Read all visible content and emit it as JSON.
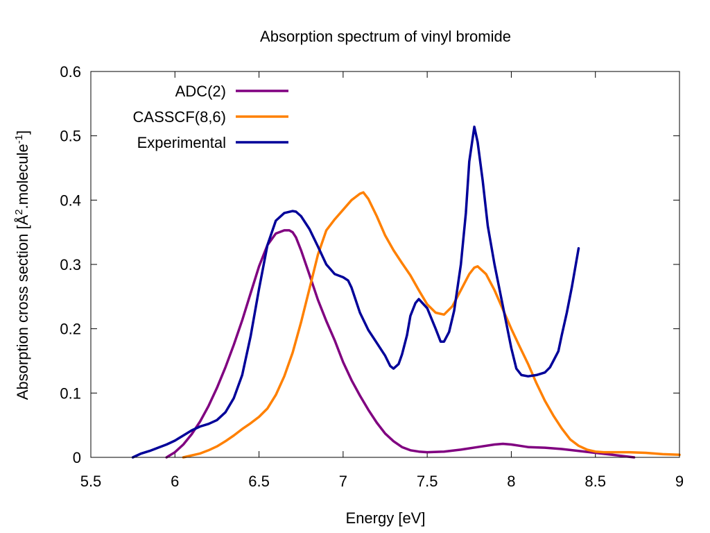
{
  "colors": {
    "adc2": "#800080",
    "casscf": "#ff8000",
    "experimental": "#000099"
  },
  "chart_data": {
    "type": "line",
    "title": "Absorption spectrum of vinyl bromide",
    "xlabel": "Energy [eV]",
    "ylabel_prefix": "Absorption cross section [Å",
    "ylabel_sup1": "2",
    "ylabel_middle": ".molecule",
    "ylabel_sup2": "-1",
    "ylabel_suffix": "]",
    "xlim": [
      5.5,
      9
    ],
    "ylim": [
      0,
      0.6
    ],
    "xticks": [
      5.5,
      6,
      6.5,
      7,
      7.5,
      8,
      8.5,
      9
    ],
    "xtick_labels": [
      "5.5",
      "6",
      "6.5",
      "7",
      "7.5",
      "8",
      "8.5",
      "9"
    ],
    "yticks": [
      0,
      0.1,
      0.2,
      0.3,
      0.4,
      0.5,
      0.6
    ],
    "ytick_labels": [
      "0",
      "0.1",
      "0.2",
      "0.3",
      "0.4",
      "0.5",
      "0.6"
    ],
    "legend_position": "top-left",
    "series": [
      {
        "name": "ADC(2)",
        "color_key": "adc2",
        "x": [
          5.95,
          6.0,
          6.05,
          6.1,
          6.15,
          6.2,
          6.25,
          6.3,
          6.35,
          6.4,
          6.45,
          6.5,
          6.55,
          6.6,
          6.65,
          6.68,
          6.7,
          6.72,
          6.75,
          6.8,
          6.85,
          6.9,
          6.95,
          7.0,
          7.05,
          7.1,
          7.15,
          7.2,
          7.25,
          7.3,
          7.35,
          7.4,
          7.45,
          7.5,
          7.6,
          7.7,
          7.8,
          7.9,
          7.95,
          8.0,
          8.05,
          8.1,
          8.2,
          8.3,
          8.4,
          8.5,
          8.6,
          8.7,
          8.73
        ],
        "y": [
          0.0,
          0.008,
          0.02,
          0.036,
          0.056,
          0.08,
          0.108,
          0.14,
          0.175,
          0.213,
          0.255,
          0.297,
          0.33,
          0.348,
          0.353,
          0.353,
          0.35,
          0.342,
          0.322,
          0.284,
          0.245,
          0.212,
          0.182,
          0.148,
          0.12,
          0.096,
          0.074,
          0.054,
          0.037,
          0.025,
          0.016,
          0.011,
          0.009,
          0.008,
          0.009,
          0.012,
          0.016,
          0.02,
          0.021,
          0.02,
          0.018,
          0.016,
          0.015,
          0.013,
          0.01,
          0.007,
          0.004,
          0.001,
          0.0
        ]
      },
      {
        "name": "CASSCF(8,6)",
        "color_key": "casscf",
        "x": [
          6.05,
          6.1,
          6.15,
          6.2,
          6.25,
          6.3,
          6.35,
          6.4,
          6.45,
          6.5,
          6.55,
          6.6,
          6.65,
          6.7,
          6.75,
          6.8,
          6.85,
          6.9,
          6.95,
          7.0,
          7.05,
          7.1,
          7.12,
          7.15,
          7.2,
          7.25,
          7.3,
          7.35,
          7.4,
          7.45,
          7.5,
          7.55,
          7.6,
          7.65,
          7.7,
          7.75,
          7.78,
          7.8,
          7.85,
          7.9,
          7.95,
          8.0,
          8.05,
          8.1,
          8.15,
          8.2,
          8.25,
          8.3,
          8.35,
          8.4,
          8.45,
          8.5,
          8.55,
          8.6,
          8.7,
          8.8,
          8.9,
          9.0
        ],
        "y": [
          0.0,
          0.003,
          0.006,
          0.011,
          0.017,
          0.025,
          0.034,
          0.044,
          0.053,
          0.063,
          0.076,
          0.097,
          0.126,
          0.163,
          0.21,
          0.262,
          0.315,
          0.353,
          0.37,
          0.385,
          0.4,
          0.41,
          0.412,
          0.402,
          0.375,
          0.345,
          0.322,
          0.302,
          0.283,
          0.26,
          0.238,
          0.225,
          0.222,
          0.235,
          0.26,
          0.285,
          0.295,
          0.297,
          0.285,
          0.26,
          0.23,
          0.2,
          0.172,
          0.145,
          0.115,
          0.088,
          0.065,
          0.045,
          0.028,
          0.018,
          0.012,
          0.009,
          0.008,
          0.008,
          0.008,
          0.007,
          0.005,
          0.004
        ]
      },
      {
        "name": "Experimental",
        "color_key": "experimental",
        "x": [
          5.75,
          5.8,
          5.85,
          5.9,
          5.95,
          6.0,
          6.05,
          6.1,
          6.15,
          6.2,
          6.25,
          6.3,
          6.35,
          6.4,
          6.45,
          6.5,
          6.55,
          6.6,
          6.65,
          6.7,
          6.72,
          6.75,
          6.8,
          6.85,
          6.9,
          6.95,
          7.0,
          7.03,
          7.05,
          7.1,
          7.15,
          7.2,
          7.25,
          7.28,
          7.3,
          7.33,
          7.35,
          7.38,
          7.4,
          7.43,
          7.45,
          7.5,
          7.55,
          7.58,
          7.6,
          7.63,
          7.66,
          7.7,
          7.73,
          7.75,
          7.78,
          7.8,
          7.83,
          7.86,
          7.9,
          7.95,
          8.0,
          8.03,
          8.06,
          8.1,
          8.15,
          8.2,
          8.23,
          8.25,
          8.28,
          8.3,
          8.33,
          8.36,
          8.4
        ],
        "y": [
          0.0,
          0.006,
          0.01,
          0.015,
          0.02,
          0.026,
          0.034,
          0.042,
          0.048,
          0.052,
          0.058,
          0.07,
          0.092,
          0.128,
          0.188,
          0.262,
          0.33,
          0.368,
          0.38,
          0.383,
          0.382,
          0.375,
          0.355,
          0.328,
          0.3,
          0.285,
          0.28,
          0.275,
          0.264,
          0.225,
          0.198,
          0.178,
          0.158,
          0.142,
          0.138,
          0.145,
          0.16,
          0.19,
          0.22,
          0.24,
          0.246,
          0.232,
          0.2,
          0.18,
          0.18,
          0.195,
          0.228,
          0.3,
          0.38,
          0.46,
          0.514,
          0.49,
          0.43,
          0.36,
          0.3,
          0.235,
          0.17,
          0.138,
          0.128,
          0.126,
          0.128,
          0.132,
          0.14,
          0.15,
          0.165,
          0.19,
          0.225,
          0.265,
          0.325
        ]
      }
    ]
  }
}
